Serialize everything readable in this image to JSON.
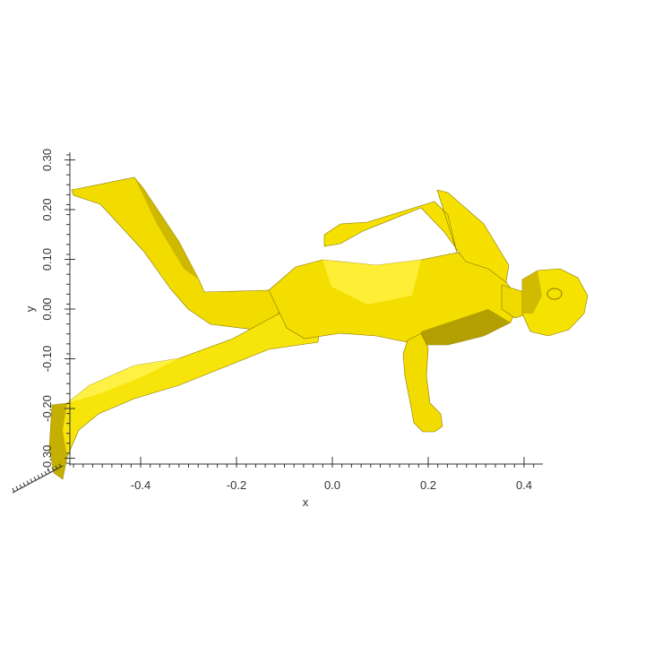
{
  "plot": {
    "x_axis": {
      "label": "x",
      "ticks": [
        "-0.4",
        "-0.2",
        "0.0",
        "0.2",
        "0.4"
      ],
      "tick_values": [
        -0.4,
        -0.2,
        0.0,
        0.2,
        0.4
      ],
      "range": [
        -0.56,
        0.44
      ]
    },
    "y_axis": {
      "label": "y",
      "ticks": [
        "-0.30",
        "-0.20",
        "-0.10",
        "0.00",
        "0.10",
        "0.20",
        "0.30"
      ],
      "tick_values": [
        -0.3,
        -0.2,
        -0.1,
        0.0,
        0.1,
        0.2,
        0.3
      ],
      "range": [
        -0.32,
        0.32
      ]
    },
    "figure": {
      "subject": "yellow 3D mesh figure",
      "colors": {
        "base": "#f5e100",
        "highlight": "#fff046",
        "shade": "#c9b400",
        "dark": "#7a6a00"
      }
    }
  }
}
